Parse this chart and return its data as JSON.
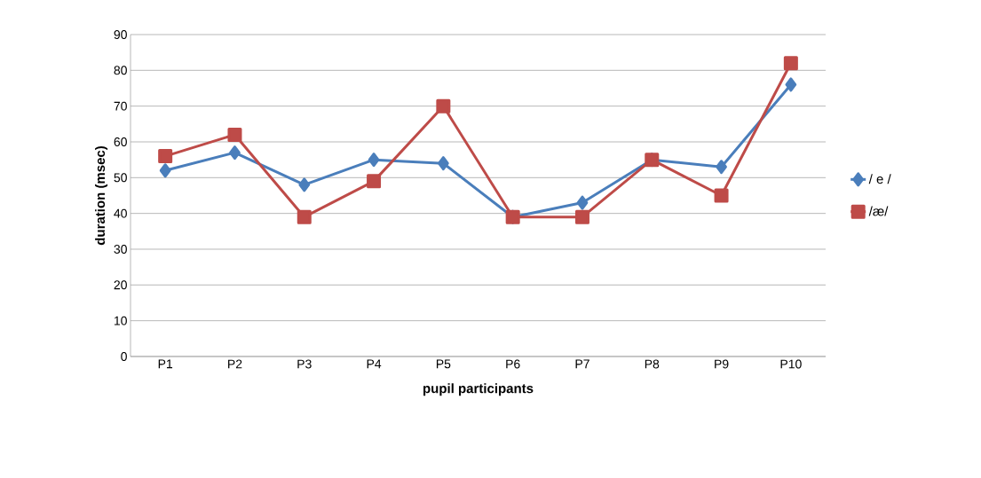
{
  "chart_data": {
    "type": "line",
    "xlabel": "pupil  participants",
    "ylabel": "duration (msec)",
    "categories": [
      "P1",
      "P2",
      "P3",
      "P4",
      "P5",
      "P6",
      "P7",
      "P8",
      "P9",
      "P10"
    ],
    "series": [
      {
        "name": "/ e /",
        "color": "#4a7ebb",
        "marker": "diamond",
        "values": [
          52,
          57,
          48,
          55,
          54,
          39,
          43,
          55,
          53,
          76
        ]
      },
      {
        "name": "/æ/",
        "color": "#be4b48",
        "marker": "square",
        "values": [
          56,
          62,
          39,
          49,
          70,
          39,
          39,
          55,
          45,
          82
        ]
      }
    ],
    "ylim": [
      0,
      90
    ],
    "yticks": [
      0,
      10,
      20,
      30,
      40,
      50,
      60,
      70,
      80,
      90
    ],
    "grid": "y",
    "legend": "right",
    "line_style": "solid"
  }
}
